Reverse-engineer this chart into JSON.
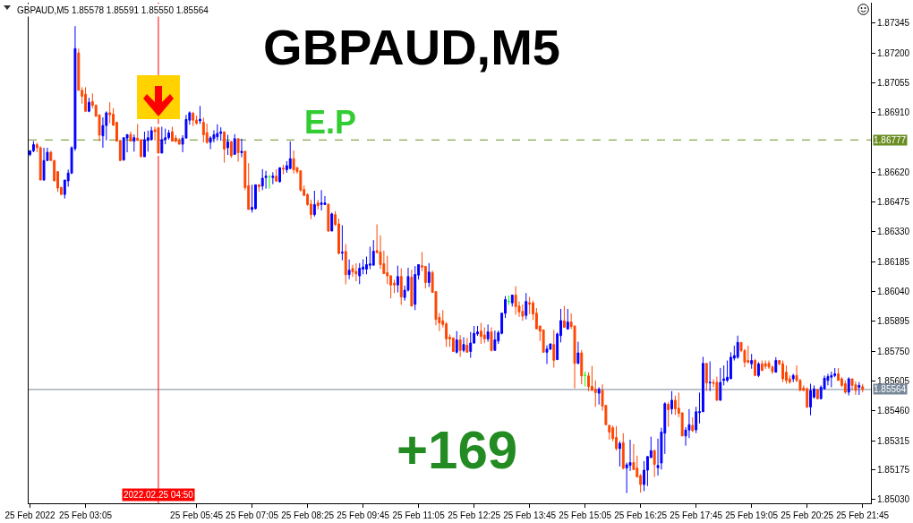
{
  "chart_data": {
    "type": "candlestick",
    "title": "GBPAUD,M5",
    "subtitle": "GBPAUD,M5 1.85578 1.85591 1.85550 1.85564",
    "x": [
      "2022-02-25T01:45",
      "2022-02-25T01:50",
      "2022-02-25T01:55",
      "2022-02-25T02:00",
      "2022-02-25T02:05",
      "2022-02-25T02:10",
      "2022-02-25T02:15",
      "2022-02-25T02:20",
      "2022-02-25T02:25",
      "2022-02-25T02:30",
      "2022-02-25T02:35",
      "2022-02-25T02:40",
      "2022-02-25T02:45",
      "2022-02-25T02:50",
      "2022-02-25T02:55",
      "2022-02-25T03:00",
      "2022-02-25T03:05",
      "2022-02-25T03:10",
      "2022-02-25T03:15",
      "2022-02-25T03:20",
      "2022-02-25T03:25",
      "2022-02-25T03:30",
      "2022-02-25T03:35",
      "2022-02-25T03:40",
      "2022-02-25T03:45",
      "2022-02-25T03:50",
      "2022-02-25T03:55",
      "2022-02-25T04:00",
      "2022-02-25T04:05",
      "2022-02-25T04:10",
      "2022-02-25T04:15",
      "2022-02-25T04:20",
      "2022-02-25T04:25",
      "2022-02-25T04:30",
      "2022-02-25T04:35",
      "2022-02-25T04:40",
      "2022-02-25T04:45",
      "2022-02-25T04:50",
      "2022-02-25T04:55",
      "2022-02-25T05:00",
      "2022-02-25T05:05",
      "2022-02-25T05:10",
      "2022-02-25T05:15",
      "2022-02-25T05:20",
      "2022-02-25T05:25",
      "2022-02-25T05:30",
      "2022-02-25T05:35",
      "2022-02-25T05:40",
      "2022-02-25T05:45",
      "2022-02-25T05:50",
      "2022-02-25T05:55",
      "2022-02-25T06:00",
      "2022-02-25T06:05",
      "2022-02-25T06:10",
      "2022-02-25T06:15",
      "2022-02-25T06:20",
      "2022-02-25T06:25",
      "2022-02-25T06:30",
      "2022-02-25T06:35",
      "2022-02-25T06:40",
      "2022-02-25T06:45",
      "2022-02-25T06:50",
      "2022-02-25T06:55",
      "2022-02-25T07:00",
      "2022-02-25T07:05",
      "2022-02-25T07:10",
      "2022-02-25T07:15",
      "2022-02-25T07:20",
      "2022-02-25T07:25",
      "2022-02-25T07:30",
      "2022-02-25T07:35",
      "2022-02-25T07:40",
      "2022-02-25T07:45",
      "2022-02-25T07:50",
      "2022-02-25T07:55",
      "2022-02-25T08:00",
      "2022-02-25T08:05",
      "2022-02-25T08:10",
      "2022-02-25T08:15",
      "2022-02-25T08:20",
      "2022-02-25T08:25",
      "2022-02-25T08:30",
      "2022-02-25T08:35",
      "2022-02-25T08:40",
      "2022-02-25T08:45",
      "2022-02-25T08:50",
      "2022-02-25T08:55",
      "2022-02-25T09:00",
      "2022-02-25T09:05",
      "2022-02-25T09:10",
      "2022-02-25T09:15",
      "2022-02-25T09:20",
      "2022-02-25T09:25",
      "2022-02-25T09:30",
      "2022-02-25T09:35",
      "2022-02-25T09:40",
      "2022-02-25T09:45",
      "2022-02-25T09:50",
      "2022-02-25T09:55",
      "2022-02-25T10:00",
      "2022-02-25T10:05",
      "2022-02-25T10:10",
      "2022-02-25T10:15",
      "2022-02-25T10:20",
      "2022-02-25T10:25",
      "2022-02-25T10:30",
      "2022-02-25T10:35",
      "2022-02-25T10:40",
      "2022-02-25T10:45",
      "2022-02-25T10:50",
      "2022-02-25T10:55",
      "2022-02-25T11:00",
      "2022-02-25T11:05",
      "2022-02-25T11:10",
      "2022-02-25T11:15",
      "2022-02-25T11:20",
      "2022-02-25T11:25",
      "2022-02-25T11:30",
      "2022-02-25T11:35",
      "2022-02-25T11:40",
      "2022-02-25T11:45",
      "2022-02-25T11:50",
      "2022-02-25T11:55",
      "2022-02-25T12:00",
      "2022-02-25T12:05",
      "2022-02-25T12:10",
      "2022-02-25T12:15",
      "2022-02-25T12:20",
      "2022-02-25T12:25",
      "2022-02-25T12:30",
      "2022-02-25T12:35",
      "2022-02-25T12:40",
      "2022-02-25T12:45",
      "2022-02-25T12:50",
      "2022-02-25T12:55",
      "2022-02-25T13:00",
      "2022-02-25T13:05",
      "2022-02-25T13:10",
      "2022-02-25T13:15",
      "2022-02-25T13:20",
      "2022-02-25T13:25",
      "2022-02-25T13:30",
      "2022-02-25T13:35",
      "2022-02-25T13:40",
      "2022-02-25T13:45",
      "2022-02-25T13:50",
      "2022-02-25T13:55",
      "2022-02-25T14:00",
      "2022-02-25T14:05",
      "2022-02-25T14:10",
      "2022-02-25T14:15",
      "2022-02-25T14:20",
      "2022-02-25T14:25",
      "2022-02-25T14:30",
      "2022-02-25T14:35",
      "2022-02-25T14:40",
      "2022-02-25T14:45",
      "2022-02-25T14:50",
      "2022-02-25T14:55",
      "2022-02-25T15:00",
      "2022-02-25T15:05",
      "2022-02-25T15:10",
      "2022-02-25T15:15",
      "2022-02-25T15:20",
      "2022-02-25T15:25",
      "2022-02-25T15:30",
      "2022-02-25T15:35",
      "2022-02-25T15:40",
      "2022-02-25T15:45",
      "2022-02-25T15:50",
      "2022-02-25T15:55",
      "2022-02-25T16:00",
      "2022-02-25T16:05",
      "2022-02-25T16:10",
      "2022-02-25T16:15",
      "2022-02-25T16:20",
      "2022-02-25T16:25",
      "2022-02-25T16:30",
      "2022-02-25T16:35",
      "2022-02-25T16:40",
      "2022-02-25T16:45",
      "2022-02-25T16:50",
      "2022-02-25T16:55",
      "2022-02-25T17:00",
      "2022-02-25T17:05",
      "2022-02-25T17:10",
      "2022-02-25T17:15",
      "2022-02-25T17:20",
      "2022-02-25T17:25",
      "2022-02-25T17:30",
      "2022-02-25T17:35",
      "2022-02-25T17:40",
      "2022-02-25T17:45",
      "2022-02-25T17:50",
      "2022-02-25T17:55",
      "2022-02-25T18:00",
      "2022-02-25T18:05",
      "2022-02-25T18:10",
      "2022-02-25T18:15",
      "2022-02-25T18:20",
      "2022-02-25T18:25",
      "2022-02-25T18:30",
      "2022-02-25T18:35",
      "2022-02-25T18:40",
      "2022-02-25T18:45",
      "2022-02-25T18:50",
      "2022-02-25T18:55",
      "2022-02-25T19:00",
      "2022-02-25T19:05",
      "2022-02-25T19:10",
      "2022-02-25T19:15",
      "2022-02-25T19:20",
      "2022-02-25T19:25",
      "2022-02-25T19:30",
      "2022-02-25T19:35",
      "2022-02-25T19:40",
      "2022-02-25T19:45",
      "2022-02-25T19:50",
      "2022-02-25T19:55",
      "2022-02-25T20:00",
      "2022-02-25T20:05",
      "2022-02-25T20:10",
      "2022-02-25T20:15",
      "2022-02-25T20:20",
      "2022-02-25T20:25",
      "2022-02-25T20:30",
      "2022-02-25T20:35",
      "2022-02-25T20:40",
      "2022-02-25T20:45",
      "2022-02-25T20:50",
      "2022-02-25T20:55",
      "2022-02-25T21:00",
      "2022-02-25T21:05",
      "2022-02-25T21:10",
      "2022-02-25T21:15",
      "2022-02-25T21:20",
      "2022-02-25T21:25",
      "2022-02-25T21:30",
      "2022-02-25T21:35",
      "2022-02-25T21:40",
      "2022-02-25T21:45"
    ],
    "ohlc": [
      [
        1.86706,
        1.86727,
        1.86698,
        1.86724
      ],
      [
        1.86724,
        1.86771,
        1.86717,
        1.86754
      ],
      [
        1.86754,
        1.86764,
        1.86717,
        1.86739
      ],
      [
        1.86739,
        1.86746,
        1.86582,
        1.86582
      ],
      [
        1.86582,
        1.86739,
        1.8658,
        1.86677
      ],
      [
        1.86677,
        1.86739,
        1.86675,
        1.86717
      ],
      [
        1.86717,
        1.86724,
        1.86677,
        1.86677
      ],
      [
        1.86677,
        1.8668,
        1.86578,
        1.86578
      ],
      [
        1.86623,
        1.86623,
        1.86524,
        1.86543
      ],
      [
        1.86546,
        1.8655,
        1.86512,
        1.86512
      ],
      [
        1.86512,
        1.86582,
        1.86492,
        1.86582
      ],
      [
        1.86578,
        1.86633,
        1.8655,
        1.86616
      ],
      [
        1.86616,
        1.86746,
        1.86611,
        1.86739
      ],
      [
        1.86735,
        1.8733,
        1.86724,
        1.87221
      ],
      [
        1.872,
        1.87221,
        1.87018,
        1.87018
      ],
      [
        1.87018,
        1.87033,
        1.86953,
        1.86989
      ],
      [
        1.86999,
        1.87033,
        1.86916,
        1.86916
      ],
      [
        1.86916,
        1.86982,
        1.86912,
        1.8696
      ],
      [
        1.86963,
        1.87003,
        1.86931,
        1.86945
      ],
      [
        1.86945,
        1.8695,
        1.86892,
        1.86892
      ],
      [
        1.86898,
        1.86902,
        1.86771,
        1.868
      ],
      [
        1.86797,
        1.86887,
        1.86739,
        1.86847
      ],
      [
        1.86847,
        1.86916,
        1.86775,
        1.86909
      ],
      [
        1.86909,
        1.8696,
        1.86858,
        1.86899
      ],
      [
        1.86902,
        1.86931,
        1.86848,
        1.86848
      ],
      [
        1.86863,
        1.86863,
        1.86771,
        1.86771
      ],
      [
        1.86774,
        1.86778,
        1.86674,
        1.86677
      ],
      [
        1.86679,
        1.86788,
        1.86677,
        1.86788
      ],
      [
        1.86786,
        1.86803,
        1.86717,
        1.86803
      ],
      [
        1.86803,
        1.86817,
        1.86771,
        1.86771
      ],
      [
        1.86771,
        1.86803,
        1.8672,
        1.86788
      ],
      [
        1.86786,
        1.86855,
        1.86774,
        1.86774
      ],
      [
        1.86778,
        1.86778,
        1.86695,
        1.86695
      ],
      [
        1.86695,
        1.86817,
        1.86695,
        1.86778
      ],
      [
        1.86774,
        1.86822,
        1.8672,
        1.86788
      ],
      [
        1.86778,
        1.86841,
        1.86774,
        1.86822
      ],
      [
        1.86826,
        1.86841,
        1.86774,
        1.86817
      ],
      [
        1.86836,
        1.86841,
        1.86713,
        1.86713
      ],
      [
        1.86713,
        1.86841,
        1.86713,
        1.86778
      ],
      [
        1.86778,
        1.86832,
        1.86756,
        1.86788
      ],
      [
        1.86788,
        1.86826,
        1.86778,
        1.86811
      ],
      [
        1.86817,
        1.86841,
        1.86771,
        1.86771
      ],
      [
        1.86786,
        1.868,
        1.86764,
        1.86771
      ],
      [
        1.86774,
        1.86786,
        1.86756,
        1.86756
      ],
      [
        1.86756,
        1.868,
        1.86717,
        1.86786
      ],
      [
        1.86786,
        1.86899,
        1.86786,
        1.86877
      ],
      [
        1.86873,
        1.86916,
        1.86851,
        1.86909
      ],
      [
        1.86906,
        1.86914,
        1.86844,
        1.86873
      ],
      [
        1.86873,
        1.86895,
        1.86851,
        1.86858
      ],
      [
        1.8687,
        1.86942,
        1.86855,
        1.86877
      ],
      [
        1.86863,
        1.86885,
        1.86765,
        1.86802
      ],
      [
        1.86812,
        1.86856,
        1.86758,
        1.86765
      ],
      [
        1.86765,
        1.86795,
        1.86732,
        1.86787
      ],
      [
        1.86783,
        1.86824,
        1.86765,
        1.86802
      ],
      [
        1.86792,
        1.86853,
        1.86773,
        1.86809
      ],
      [
        1.86809,
        1.86838,
        1.86773,
        1.86816
      ],
      [
        1.86816,
        1.86816,
        1.86667,
        1.86732
      ],
      [
        1.86739,
        1.86802,
        1.86704,
        1.86768
      ],
      [
        1.86768,
        1.86773,
        1.8669,
        1.867
      ],
      [
        1.86707,
        1.86805,
        1.86704,
        1.86783
      ],
      [
        1.86783,
        1.86783,
        1.86671,
        1.86715
      ],
      [
        1.86715,
        1.86783,
        1.86693,
        1.86722
      ],
      [
        1.86722,
        1.86722,
        1.86533,
        1.86545
      ],
      [
        1.86555,
        1.86664,
        1.86439,
        1.86439
      ],
      [
        1.86439,
        1.86559,
        1.86424,
        1.86449
      ],
      [
        1.86443,
        1.86559,
        1.86439,
        1.86559
      ],
      [
        1.86559,
        1.86562,
        1.86526,
        1.8655
      ],
      [
        1.86553,
        1.86635,
        1.86533,
        1.86591
      ],
      [
        1.86594,
        1.86627,
        1.8654,
        1.86601
      ],
      [
        1.86598,
        1.86606,
        1.8654,
        1.86598
      ],
      [
        1.86594,
        1.8662,
        1.86562,
        1.86601
      ],
      [
        1.86601,
        1.86635,
        1.86574,
        1.86577
      ],
      [
        1.86574,
        1.86642,
        1.86569,
        1.86642
      ],
      [
        1.8664,
        1.86656,
        1.8661,
        1.86635
      ],
      [
        1.86632,
        1.86674,
        1.86617,
        1.86652
      ],
      [
        1.86638,
        1.8677,
        1.86635,
        1.86686
      ],
      [
        1.86686,
        1.86726,
        1.86613,
        1.86632
      ],
      [
        1.86642,
        1.86646,
        1.86613,
        1.86623
      ],
      [
        1.86627,
        1.86627,
        1.86526,
        1.86533
      ],
      [
        1.86536,
        1.86555,
        1.86504,
        1.86507
      ],
      [
        1.86511,
        1.86518,
        1.86457,
        1.86463
      ],
      [
        1.86465,
        1.86486,
        1.86392,
        1.86414
      ],
      [
        1.86414,
        1.8653,
        1.86405,
        1.86463
      ],
      [
        1.86471,
        1.86486,
        1.86439,
        1.86457
      ],
      [
        1.86463,
        1.86533,
        1.86434,
        1.86471
      ],
      [
        1.86463,
        1.86504,
        1.8646,
        1.86471
      ],
      [
        1.86465,
        1.86465,
        1.8633,
        1.86334
      ],
      [
        1.86334,
        1.86424,
        1.86334,
        1.86417
      ],
      [
        1.86414,
        1.86431,
        1.86359,
        1.86366
      ],
      [
        1.86369,
        1.86395,
        1.86221,
        1.86225
      ],
      [
        1.86228,
        1.86362,
        1.86192,
        1.86231
      ],
      [
        1.86235,
        1.86271,
        1.86075,
        1.86122
      ],
      [
        1.86122,
        1.86196,
        1.861,
        1.86144
      ],
      [
        1.86152,
        1.8617,
        1.86111,
        1.86136
      ],
      [
        1.86138,
        1.86177,
        1.8609,
        1.86126
      ],
      [
        1.86116,
        1.86178,
        1.86076,
        1.86153
      ],
      [
        1.86149,
        1.86197,
        1.86124,
        1.86159
      ],
      [
        1.86149,
        1.8621,
        1.86124,
        1.86171
      ],
      [
        1.86168,
        1.86258,
        1.86149,
        1.86174
      ],
      [
        1.86168,
        1.8629,
        1.86168,
        1.86236
      ],
      [
        1.86239,
        1.86367,
        1.86229,
        1.86229
      ],
      [
        1.86232,
        1.86313,
        1.86149,
        1.86171
      ],
      [
        1.86175,
        1.86239,
        1.86127,
        1.86127
      ],
      [
        1.86132,
        1.86214,
        1.86076,
        1.86116
      ],
      [
        1.86117,
        1.86117,
        1.86007,
        1.86072
      ],
      [
        1.86081,
        1.86098,
        1.86033,
        1.86072
      ],
      [
        1.86072,
        1.86166,
        1.86036,
        1.86113
      ],
      [
        1.86113,
        1.86153,
        1.85975,
        1.86014
      ],
      [
        1.86011,
        1.86069,
        1.85996,
        1.86047
      ],
      [
        1.86047,
        1.86156,
        1.8604,
        1.86113
      ],
      [
        1.8611,
        1.86146,
        1.85967,
        1.8597
      ],
      [
        1.85978,
        1.86164,
        1.8595,
        1.86123
      ],
      [
        1.8612,
        1.86171,
        1.86098,
        1.86171
      ],
      [
        1.86166,
        1.86232,
        1.86139,
        1.86159
      ],
      [
        1.86162,
        1.86164,
        1.86055,
        1.86084
      ],
      [
        1.86084,
        1.86178,
        1.86062,
        1.86135
      ],
      [
        1.86132,
        1.86142,
        1.86033,
        1.86036
      ],
      [
        1.8604,
        1.8604,
        1.85876,
        1.85905
      ],
      [
        1.85914,
        1.85935,
        1.85848,
        1.85888
      ],
      [
        1.85898,
        1.85949,
        1.85866,
        1.8588
      ],
      [
        1.85883,
        1.85892,
        1.85771,
        1.8581
      ],
      [
        1.85818,
        1.85832,
        1.85771,
        1.8581
      ],
      [
        1.85815,
        1.85815,
        1.85749,
        1.85749
      ],
      [
        1.85745,
        1.85848,
        1.85739,
        1.85805
      ],
      [
        1.85805,
        1.85829,
        1.85723,
        1.85754
      ],
      [
        1.85754,
        1.85818,
        1.85745,
        1.85783
      ],
      [
        1.85779,
        1.85815,
        1.85745,
        1.85745
      ],
      [
        1.85749,
        1.85844,
        1.85718,
        1.8579
      ],
      [
        1.8579,
        1.85873,
        1.85786,
        1.85837
      ],
      [
        1.85834,
        1.85873,
        1.85825,
        1.85844
      ],
      [
        1.85848,
        1.85888,
        1.85786,
        1.85822
      ],
      [
        1.85829,
        1.85866,
        1.85789,
        1.8581
      ],
      [
        1.8581,
        1.8588,
        1.85796,
        1.85844
      ],
      [
        1.85844,
        1.85866,
        1.85749,
        1.85754
      ],
      [
        1.85754,
        1.85851,
        1.85754,
        1.85805
      ],
      [
        1.858,
        1.85851,
        1.85786,
        1.8584
      ],
      [
        1.85837,
        1.85938,
        1.85832,
        1.85935
      ],
      [
        1.85934,
        1.86018,
        1.85912,
        1.86001
      ],
      [
        1.85992,
        1.86021,
        1.85975,
        1.85992
      ],
      [
        1.85985,
        1.86023,
        1.85967,
        1.86023
      ],
      [
        1.86023,
        1.86066,
        1.85928,
        1.85967
      ],
      [
        1.8597,
        1.85992,
        1.85917,
        1.85941
      ],
      [
        1.85944,
        1.85978,
        1.85898,
        1.8592
      ],
      [
        1.85924,
        1.86033,
        1.85905,
        1.85992
      ],
      [
        1.85986,
        1.86014,
        1.85931,
        1.85979
      ],
      [
        1.85985,
        1.85996,
        1.85902,
        1.85931
      ],
      [
        1.85935,
        1.8596,
        1.85856,
        1.85859
      ],
      [
        1.85873,
        1.85873,
        1.858,
        1.85848
      ],
      [
        1.85854,
        1.85854,
        1.85742,
        1.85745
      ],
      [
        1.85745,
        1.85779,
        1.85688,
        1.85761
      ],
      [
        1.8576,
        1.85786,
        1.85757,
        1.85786
      ],
      [
        1.85783,
        1.85854,
        1.8567,
        1.85706
      ],
      [
        1.85709,
        1.85841,
        1.85709,
        1.85834
      ],
      [
        1.85826,
        1.85956,
        1.85793,
        1.85899
      ],
      [
        1.85898,
        1.8597,
        1.85866,
        1.85866
      ],
      [
        1.85858,
        1.85956,
        1.85858,
        1.85892
      ],
      [
        1.85892,
        1.85934,
        1.85858,
        1.8587
      ],
      [
        1.85873,
        1.85873,
        1.8557,
        1.85691
      ],
      [
        1.85691,
        1.85796,
        1.85687,
        1.85742
      ],
      [
        1.85742,
        1.85756,
        1.85589,
        1.8563
      ],
      [
        1.85633,
        1.85652,
        1.85579,
        1.85633
      ],
      [
        1.8563,
        1.85647,
        1.85556,
        1.85578
      ],
      [
        1.85579,
        1.85679,
        1.85557,
        1.8556
      ],
      [
        1.85565,
        1.85608,
        1.8548,
        1.85549
      ],
      [
        1.85546,
        1.85575,
        1.85491,
        1.85565
      ],
      [
        1.8556,
        1.85589,
        1.85461,
        1.85483
      ],
      [
        1.85487,
        1.85487,
        1.85393,
        1.85393
      ],
      [
        1.8539,
        1.8539,
        1.8532,
        1.85357
      ],
      [
        1.85378,
        1.85389,
        1.85313,
        1.85325
      ],
      [
        1.85331,
        1.85386,
        1.85267,
        1.85277
      ],
      [
        1.85277,
        1.85313,
        1.8519,
        1.85302
      ],
      [
        1.85306,
        1.85352,
        1.85175,
        1.85182
      ],
      [
        1.85182,
        1.85209,
        1.85061,
        1.85198
      ],
      [
        1.85195,
        1.8532,
        1.85168,
        1.85209
      ],
      [
        1.85209,
        1.85299,
        1.85175,
        1.85175
      ],
      [
        1.85182,
        1.85243,
        1.85139,
        1.85139
      ],
      [
        1.85146,
        1.85153,
        1.85063,
        1.85102
      ],
      [
        1.85102,
        1.85216,
        1.8507,
        1.85172
      ],
      [
        1.85172,
        1.8524,
        1.85095,
        1.85238
      ],
      [
        1.85233,
        1.85335,
        1.85233,
        1.85267
      ],
      [
        1.85267,
        1.85272,
        1.85139,
        1.852
      ],
      [
        1.85184,
        1.85325,
        1.85146,
        1.85195
      ],
      [
        1.85207,
        1.85378,
        1.85175,
        1.85357
      ],
      [
        1.85352,
        1.85502,
        1.85251,
        1.85495
      ],
      [
        1.85492,
        1.85502,
        1.85383,
        1.85466
      ],
      [
        1.8547,
        1.85556,
        1.85444,
        1.85512
      ],
      [
        1.85512,
        1.85534,
        1.8544,
        1.8547
      ],
      [
        1.85473,
        1.85549,
        1.85429,
        1.85448
      ],
      [
        1.85451,
        1.85451,
        1.85338,
        1.85338
      ],
      [
        1.85338,
        1.85381,
        1.85291,
        1.85367
      ],
      [
        1.85367,
        1.85469,
        1.85328,
        1.85393
      ],
      [
        1.8539,
        1.85429,
        1.85357,
        1.85364
      ],
      [
        1.85368,
        1.8548,
        1.85352,
        1.85456
      ],
      [
        1.85451,
        1.85549,
        1.85399,
        1.85456
      ],
      [
        1.85456,
        1.85723,
        1.85456,
        1.85691
      ],
      [
        1.85691,
        1.85691,
        1.85556,
        1.85596
      ],
      [
        1.85596,
        1.85701,
        1.85556,
        1.85599
      ],
      [
        1.85599,
        1.85614,
        1.85575,
        1.85594
      ],
      [
        1.85599,
        1.85626,
        1.85509,
        1.85512
      ],
      [
        1.85512,
        1.85669,
        1.85509,
        1.85599
      ],
      [
        1.85608,
        1.85681,
        1.85584,
        1.85616
      ],
      [
        1.85608,
        1.85705,
        1.856,
        1.85624
      ],
      [
        1.85616,
        1.85745,
        1.85616,
        1.85721
      ],
      [
        1.85716,
        1.85777,
        1.85705,
        1.85729
      ],
      [
        1.85721,
        1.85826,
        1.85713,
        1.85793
      ],
      [
        1.85793,
        1.85793,
        1.85745,
        1.85753
      ],
      [
        1.85753,
        1.85761,
        1.85672,
        1.85697
      ],
      [
        1.85705,
        1.85777,
        1.85689,
        1.85697
      ],
      [
        1.85689,
        1.85737,
        1.85665,
        1.85705
      ],
      [
        1.85705,
        1.85713,
        1.85632,
        1.85632
      ],
      [
        1.85632,
        1.85697,
        1.85624,
        1.85689
      ],
      [
        1.85689,
        1.85705,
        1.85656,
        1.85656
      ],
      [
        1.85689,
        1.85705,
        1.85664,
        1.85677
      ],
      [
        1.85692,
        1.85705,
        1.85664,
        1.85673
      ],
      [
        1.85673,
        1.85681,
        1.8564,
        1.85651
      ],
      [
        1.85648,
        1.85721,
        1.85648,
        1.85705
      ],
      [
        1.85705,
        1.85708,
        1.85681,
        1.85689
      ],
      [
        1.85689,
        1.85705,
        1.856,
        1.85616
      ],
      [
        1.85648,
        1.85681,
        1.85592,
        1.85608
      ],
      [
        1.85616,
        1.85632,
        1.85592,
        1.856
      ],
      [
        1.85616,
        1.8564,
        1.856,
        1.85632
      ],
      [
        1.85632,
        1.85681,
        1.856,
        1.85608
      ],
      [
        1.85608,
        1.85616,
        1.85559,
        1.85559
      ],
      [
        1.85571,
        1.85584,
        1.85559,
        1.85559
      ],
      [
        1.85567,
        1.85575,
        1.85474,
        1.85479
      ],
      [
        1.85479,
        1.85592,
        1.85439,
        1.85559
      ],
      [
        1.85527,
        1.85584,
        1.85519,
        1.85567
      ],
      [
        1.85564,
        1.85567,
        1.85519,
        1.85519
      ],
      [
        1.85519,
        1.85584,
        1.85519,
        1.85575
      ],
      [
        1.85567,
        1.85632,
        1.85564,
        1.85619
      ],
      [
        1.85608,
        1.8564,
        1.85584,
        1.85627
      ],
      [
        1.85624,
        1.85651,
        1.85575,
        1.85632
      ],
      [
        1.85632,
        1.85668,
        1.85624,
        1.8564
      ],
      [
        1.8564,
        1.85668,
        1.85608,
        1.85608
      ],
      [
        1.85616,
        1.85624,
        1.85575,
        1.85584
      ],
      [
        1.85592,
        1.85608,
        1.85543,
        1.85551
      ],
      [
        1.85551,
        1.85624,
        1.85535,
        1.85616
      ],
      [
        1.85616,
        1.85616,
        1.85559,
        1.85584
      ],
      [
        1.85587,
        1.85603,
        1.85538,
        1.85559
      ],
      [
        1.85575,
        1.856,
        1.85538,
        1.85584
      ],
      [
        1.85578,
        1.85591,
        1.8555,
        1.85564
      ]
    ],
    "colors": [
      "#0000ff",
      "#0000ff",
      "#ff4500",
      "#ff4500",
      "#0000ff",
      "#0000ff",
      "#ff4500",
      "#ff4500",
      "#ff4500",
      "#ff4500",
      "#0000ff",
      "#0000ff",
      "#0000ff",
      "#0000ff",
      "#ff4500",
      "#ff4500",
      "#ff4500",
      "#0000ff",
      "#ff4500",
      "#ff4500",
      "#ff4500",
      "#0000ff",
      "#0000ff",
      "#ff4500",
      "#ff4500",
      "#ff4500",
      "#ff4500",
      "#0000ff",
      "#0000ff",
      "#ff4500",
      "#0000ff",
      "#ff4500",
      "#ff4500",
      "#0000ff",
      "#0000ff",
      "#0000ff",
      "#ff4500",
      "#ff4500",
      "#0000ff",
      "#0000ff",
      "#0000ff",
      "#ff4500",
      "#ff4500",
      "#ff4500",
      "#0000ff",
      "#0000ff",
      "#0000ff",
      "#ff4500",
      "#ff4500",
      "#0000ff",
      "#ff4500",
      "#ff4500",
      "#0000ff",
      "#0000ff",
      "#0000ff",
      "#0000ff",
      "#ff4500",
      "#0000ff",
      "#ff4500",
      "#0000ff",
      "#ff4500",
      "#0000ff",
      "#ff4500",
      "#ff4500",
      "#0000ff",
      "#0000ff",
      "#ff4500",
      "#0000ff",
      "#0000ff",
      "#00ff00",
      "#0000ff",
      "#ff4500",
      "#0000ff",
      "#ff4500",
      "#0000ff",
      "#0000ff",
      "#ff4500",
      "#ff4500",
      "#ff4500",
      "#ff4500",
      "#ff4500",
      "#ff4500",
      "#0000ff",
      "#ff4500",
      "#0000ff",
      "#0000ff",
      "#ff4500",
      "#0000ff",
      "#ff4500",
      "#ff4500",
      "#0000ff",
      "#ff4500",
      "#0000ff",
      "#ff4500",
      "#ff4500",
      "#0000ff",
      "#0000ff",
      "#0000ff",
      "#0000ff",
      "#0000ff",
      "#ff4500",
      "#ff4500",
      "#ff4500",
      "#ff4500",
      "#ff4500",
      "#ff4500",
      "#0000ff",
      "#ff4500",
      "#0000ff",
      "#0000ff",
      "#ff4500",
      "#0000ff",
      "#0000ff",
      "#ff4500",
      "#ff4500",
      "#0000ff",
      "#ff4500",
      "#ff4500",
      "#ff4500",
      "#ff4500",
      "#ff4500",
      "#ff4500",
      "#ff4500",
      "#0000ff",
      "#ff4500",
      "#0000ff",
      "#ff4500",
      "#0000ff",
      "#0000ff",
      "#0000ff",
      "#ff4500",
      "#ff4500",
      "#0000ff",
      "#ff4500",
      "#0000ff",
      "#0000ff",
      "#0000ff",
      "#0000ff",
      "#00ff00",
      "#0000ff",
      "#ff4500",
      "#ff4500",
      "#ff4500",
      "#0000ff",
      "#ff4500",
      "#ff4500",
      "#ff4500",
      "#ff4500",
      "#ff4500",
      "#0000ff",
      "#0000ff",
      "#ff4500",
      "#0000ff",
      "#0000ff",
      "#ff4500",
      "#0000ff",
      "#ff4500",
      "#ff4500",
      "#0000ff",
      "#ff4500",
      "#00ff00",
      "#ff4500",
      "#ff4500",
      "#ff4500",
      "#0000ff",
      "#ff4500",
      "#ff4500",
      "#ff4500",
      "#ff4500",
      "#ff4500",
      "#0000ff",
      "#ff4500",
      "#0000ff",
      "#0000ff",
      "#ff4500",
      "#ff4500",
      "#ff4500",
      "#0000ff",
      "#0000ff",
      "#0000ff",
      "#ff4500",
      "#0000ff",
      "#0000ff",
      "#0000ff",
      "#ff4500",
      "#0000ff",
      "#ff4500",
      "#ff4500",
      "#ff4500",
      "#0000ff",
      "#0000ff",
      "#ff4500",
      "#0000ff",
      "#0000ff",
      "#0000ff",
      "#ff4500",
      "#0000ff",
      "#ff4500",
      "#ff4500",
      "#0000ff",
      "#0000ff",
      "#0000ff",
      "#0000ff",
      "#0000ff",
      "#0000ff",
      "#ff4500",
      "#ff4500",
      "#ff4500",
      "#0000ff",
      "#ff4500",
      "#0000ff",
      "#ff4500",
      "#ff4500",
      "#ff4500",
      "#ff4500",
      "#0000ff",
      "#ff4500",
      "#ff4500",
      "#ff4500",
      "#ff4500",
      "#0000ff",
      "#ff4500",
      "#ff4500",
      "#ff4500",
      "#ff4500",
      "#0000ff",
      "#0000ff",
      "#ff4500",
      "#0000ff",
      "#0000ff",
      "#0000ff",
      "#0000ff",
      "#0000ff",
      "#ff4500",
      "#ff4500",
      "#ff4500",
      "#0000ff",
      "#ff4500",
      "#ff4500",
      "#0000ff",
      "#ff4500"
    ],
    "xlim": [
      "2022-02-25T01:43",
      "2022-02-25T21:57"
    ],
    "xticks": [
      {
        "value": "2022-02-25T01:45",
        "label": "25 Feb 2022"
      },
      {
        "value": "2022-02-25T03:05",
        "label": "25 Feb 03:05"
      },
      {
        "value": "2022-02-25T05:45",
        "label": "25 Feb 05:45"
      },
      {
        "value": "2022-02-25T07:05",
        "label": "25 Feb 07:05"
      },
      {
        "value": "2022-02-25T08:25",
        "label": "25 Feb 08:25"
      },
      {
        "value": "2022-02-25T09:45",
        "label": "25 Feb 09:45"
      },
      {
        "value": "2022-02-25T11:05",
        "label": "25 Feb 11:05"
      },
      {
        "value": "2022-02-25T12:25",
        "label": "25 Feb 12:25"
      },
      {
        "value": "2022-02-25T13:45",
        "label": "25 Feb 13:45"
      },
      {
        "value": "2022-02-25T15:05",
        "label": "25 Feb 15:05"
      },
      {
        "value": "2022-02-25T16:25",
        "label": "25 Feb 16:25"
      },
      {
        "value": "2022-02-25T17:45",
        "label": "25 Feb 17:45"
      },
      {
        "value": "2022-02-25T19:05",
        "label": "25 Feb 19:05"
      },
      {
        "value": "2022-02-25T20:25",
        "label": "25 Feb 20:25"
      },
      {
        "value": "2022-02-25T21:45",
        "label": "25 Feb 21:45"
      }
    ],
    "ylim": [
      1.85011,
      1.87444
    ],
    "yticks": [
      1.87345,
      {
        "value": 1.872,
        "label": "1.87200"
      },
      1.87055,
      {
        "value": 1.8691,
        "label": "1.86910"
      },
      {
        "value": 1.8662,
        "label": "1.86620"
      },
      1.86475,
      {
        "value": 1.8633,
        "label": "1.86330"
      },
      1.86185,
      {
        "value": 1.8604,
        "label": "1.86040"
      },
      1.85895,
      {
        "value": 1.8575,
        "label": "1.85750"
      },
      1.85605,
      {
        "value": 1.8546,
        "label": "1.85460"
      },
      1.85315,
      1.85175,
      {
        "value": 1.8503,
        "label": "1.85030"
      }
    ],
    "ref_lines": [
      {
        "axis": "x",
        "value": "2022-02-25T04:50",
        "label": "2022.02.25 04:50",
        "color": "#ff0000"
      },
      {
        "axis": "y",
        "value": 1.86777,
        "label": "1.86777",
        "color": "#6b8e23",
        "line_style": "dashed"
      },
      {
        "axis": "y",
        "value": 1.85564,
        "label": "1.85564",
        "color": "#778899"
      }
    ],
    "annotations": [
      {
        "text": "E.P",
        "x": "2022-02-25T08:58",
        "y": 1.86777
      },
      "+169"
    ]
  }
}
